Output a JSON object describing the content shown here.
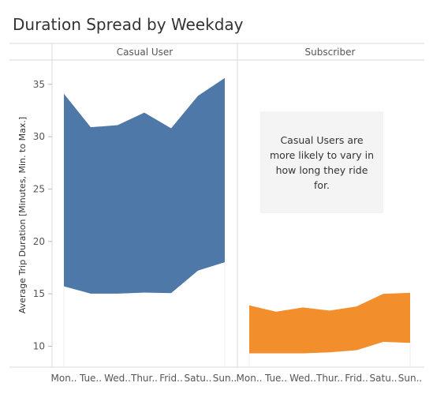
{
  "title": "Duration Spread by Weekday",
  "chart_data": {
    "type": "area",
    "ylabel": "Average Trip Duration [Minutes, Min. to Max.]",
    "ylim": [
      7.5,
      38
    ],
    "yticks": [
      10,
      15,
      20,
      25,
      30,
      35
    ],
    "categories": [
      "Mon..",
      "Tue..",
      "Wed..",
      "Thur..",
      "Frid..",
      "Satu..",
      "Sun.."
    ],
    "panels": [
      {
        "name": "Casual User",
        "color": "#4e78a7",
        "min": [
          15.7,
          15.0,
          15.0,
          15.1,
          15.05,
          17.2,
          18.0
        ],
        "max": [
          34.1,
          30.9,
          31.1,
          32.3,
          30.8,
          33.9,
          35.6
        ]
      },
      {
        "name": "Subscriber",
        "color": "#f28e2b",
        "min": [
          9.3,
          9.3,
          9.3,
          9.4,
          9.6,
          10.4,
          10.3
        ],
        "max": [
          13.9,
          13.3,
          13.7,
          13.4,
          13.8,
          15.0,
          15.1
        ]
      }
    ],
    "annotation": "Casual Users are more likely to vary in how long they ride for."
  }
}
